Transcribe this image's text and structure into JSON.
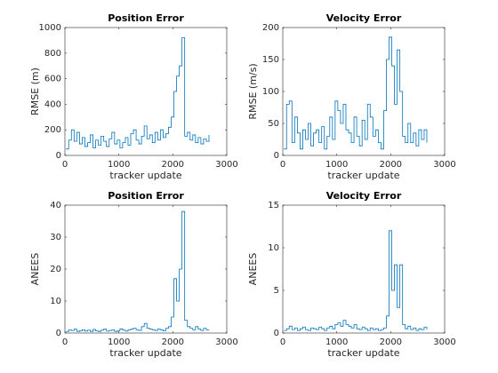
{
  "chart_data": [
    {
      "type": "stairs",
      "title": "Position Error",
      "xlabel": "tracker update",
      "ylabel": "RMSE (m)",
      "color": "#0072bd",
      "x": [
        20,
        70,
        120,
        170,
        220,
        270,
        320,
        370,
        420,
        470,
        520,
        570,
        620,
        670,
        720,
        770,
        820,
        870,
        920,
        970,
        1020,
        1070,
        1120,
        1170,
        1220,
        1270,
        1320,
        1370,
        1420,
        1470,
        1520,
        1570,
        1620,
        1670,
        1720,
        1770,
        1820,
        1870,
        1920,
        1970,
        2020,
        2070,
        2120,
        2170,
        2220,
        2270,
        2320,
        2370,
        2420,
        2470,
        2520,
        2570,
        2620,
        2670
      ],
      "values": [
        50,
        120,
        200,
        110,
        180,
        90,
        140,
        70,
        100,
        160,
        60,
        120,
        80,
        150,
        110,
        70,
        130,
        180,
        90,
        120,
        60,
        100,
        140,
        80,
        170,
        200,
        120,
        90,
        150,
        230,
        130,
        160,
        100,
        180,
        120,
        200,
        140,
        170,
        220,
        300,
        500,
        620,
        700,
        920,
        150,
        180,
        120,
        160,
        100,
        140,
        90,
        130,
        110,
        160
      ],
      "xlim": [
        0,
        3000
      ],
      "ylim": [
        0,
        1000
      ],
      "xticks": [
        0,
        1000,
        2000,
        3000
      ],
      "yticks": [
        0,
        200,
        400,
        600,
        800,
        1000
      ]
    },
    {
      "type": "stairs",
      "title": "Velocity Error",
      "xlabel": "tracker update",
      "ylabel": "RMSE (m/s)",
      "color": "#0072bd",
      "x": [
        20,
        70,
        120,
        170,
        220,
        270,
        320,
        370,
        420,
        470,
        520,
        570,
        620,
        670,
        720,
        770,
        820,
        870,
        920,
        970,
        1020,
        1070,
        1120,
        1170,
        1220,
        1270,
        1320,
        1370,
        1420,
        1470,
        1520,
        1570,
        1620,
        1670,
        1720,
        1770,
        1820,
        1870,
        1920,
        1970,
        2020,
        2070,
        2120,
        2170,
        2220,
        2270,
        2320,
        2370,
        2420,
        2470,
        2520,
        2570,
        2620,
        2670
      ],
      "values": [
        10,
        80,
        85,
        20,
        60,
        35,
        10,
        40,
        25,
        50,
        15,
        35,
        40,
        20,
        45,
        10,
        30,
        60,
        25,
        85,
        70,
        50,
        80,
        40,
        35,
        20,
        60,
        30,
        15,
        55,
        25,
        80,
        60,
        30,
        40,
        20,
        10,
        70,
        150,
        185,
        140,
        80,
        165,
        100,
        30,
        20,
        50,
        20,
        35,
        15,
        40,
        25,
        40,
        20
      ],
      "xlim": [
        0,
        3000
      ],
      "ylim": [
        0,
        200
      ],
      "xticks": [
        0,
        1000,
        2000,
        3000
      ],
      "yticks": [
        0,
        50,
        100,
        150,
        200
      ]
    },
    {
      "type": "stairs",
      "title": "Position Error",
      "xlabel": "tracker update",
      "ylabel": "ANEES",
      "color": "#0072bd",
      "x": [
        20,
        70,
        120,
        170,
        220,
        270,
        320,
        370,
        420,
        470,
        520,
        570,
        620,
        670,
        720,
        770,
        820,
        870,
        920,
        970,
        1020,
        1070,
        1120,
        1170,
        1220,
        1270,
        1320,
        1370,
        1420,
        1470,
        1520,
        1570,
        1620,
        1670,
        1720,
        1770,
        1820,
        1870,
        1920,
        1970,
        2020,
        2070,
        2120,
        2170,
        2220,
        2270,
        2320,
        2370,
        2420,
        2470,
        2520,
        2570,
        2620,
        2670
      ],
      "values": [
        0.5,
        1,
        0.8,
        1.2,
        0.5,
        0.7,
        1,
        0.6,
        0.9,
        0.5,
        1.1,
        0.7,
        0.5,
        0.9,
        1.2,
        0.6,
        0.8,
        1,
        0.5,
        0.7,
        1.3,
        0.9,
        0.6,
        1,
        1.2,
        1.5,
        1,
        0.8,
        2,
        3,
        1.5,
        1.2,
        1,
        0.8,
        1.2,
        1,
        0.7,
        1.5,
        2,
        5,
        17,
        10,
        20,
        38,
        4,
        2,
        1.5,
        1,
        2,
        1.2,
        0.8,
        1.5,
        1,
        0.9
      ],
      "xlim": [
        0,
        3000
      ],
      "ylim": [
        0,
        40
      ],
      "xticks": [
        0,
        1000,
        2000,
        3000
      ],
      "yticks": [
        0,
        10,
        20,
        30,
        40
      ]
    },
    {
      "type": "stairs",
      "title": "Velocity Error",
      "xlabel": "tracker update",
      "ylabel": "ANEES",
      "color": "#0072bd",
      "x": [
        20,
        70,
        120,
        170,
        220,
        270,
        320,
        370,
        420,
        470,
        520,
        570,
        620,
        670,
        720,
        770,
        820,
        870,
        920,
        970,
        1020,
        1070,
        1120,
        1170,
        1220,
        1270,
        1320,
        1370,
        1420,
        1470,
        1520,
        1570,
        1620,
        1670,
        1720,
        1770,
        1820,
        1870,
        1920,
        1970,
        2020,
        2070,
        2120,
        2170,
        2220,
        2270,
        2320,
        2370,
        2420,
        2470,
        2520,
        2570,
        2620,
        2670
      ],
      "values": [
        0.3,
        0.5,
        0.8,
        0.4,
        0.6,
        0.3,
        0.5,
        0.7,
        0.4,
        0.3,
        0.6,
        0.5,
        0.4,
        0.7,
        0.5,
        0.3,
        0.6,
        0.8,
        0.5,
        1,
        1.2,
        0.8,
        1.5,
        1,
        0.8,
        0.6,
        1,
        0.5,
        0.4,
        0.7,
        0.5,
        0.3,
        0.6,
        0.4,
        0.5,
        0.3,
        0.4,
        0.6,
        2,
        12,
        5,
        8,
        3,
        8,
        1,
        0.5,
        0.8,
        0.4,
        0.6,
        0.3,
        0.5,
        0.4,
        0.7,
        0.4
      ],
      "xlim": [
        0,
        3000
      ],
      "ylim": [
        0,
        15
      ],
      "xticks": [
        0,
        1000,
        2000,
        3000
      ],
      "yticks": [
        0,
        5,
        10,
        15
      ]
    }
  ]
}
